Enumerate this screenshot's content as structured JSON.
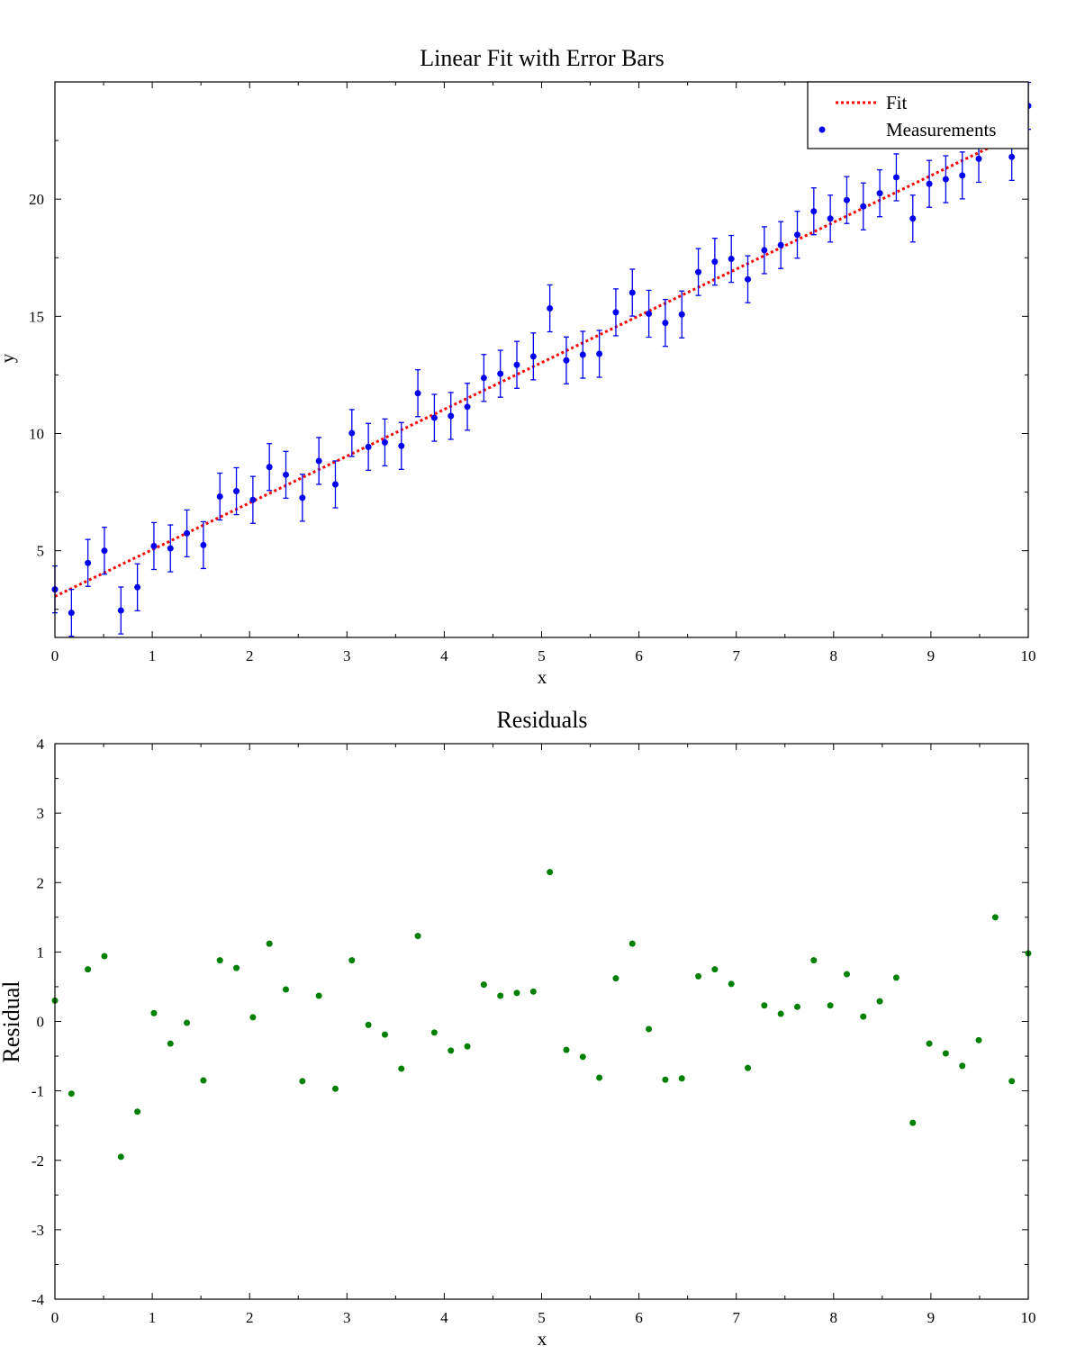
{
  "chart_data": [
    {
      "type": "scatter",
      "title": "Linear Fit with Error Bars",
      "xlabel": "x",
      "ylabel": "y",
      "xlim": [
        0,
        10
      ],
      "ylim": [
        1.3,
        25
      ],
      "xticks": [
        "0",
        "1",
        "2",
        "3",
        "4",
        "5",
        "6",
        "7",
        "8",
        "9",
        "10"
      ],
      "yticks": [
        "5",
        "10",
        "15",
        "20"
      ],
      "grid": false,
      "legend": {
        "placement": "top-right",
        "entries": [
          "Fit",
          "Measurements"
        ]
      },
      "fit": {
        "name": "Fit",
        "intercept": 3.05,
        "slope": 1.995,
        "color": "#ff0000",
        "style": "dotted"
      },
      "series": [
        {
          "name": "Measurements",
          "color": "#0000ee",
          "n_points": 60,
          "x_start": 0,
          "x_end": 10,
          "y": [
            3.35,
            2.35,
            4.48,
            5.0,
            2.45,
            3.44,
            5.2,
            5.1,
            5.74,
            5.24,
            7.31,
            7.54,
            7.17,
            8.57,
            8.24,
            7.26,
            8.83,
            7.83,
            10.02,
            9.43,
            9.62,
            9.47,
            11.72,
            10.67,
            10.75,
            11.14,
            12.37,
            12.55,
            12.93,
            13.29,
            15.34,
            13.12,
            13.36,
            13.4,
            15.17,
            16.01,
            15.11,
            14.72,
            15.08,
            16.89,
            17.33,
            17.45,
            16.58,
            17.82,
            18.04,
            18.48,
            19.48,
            19.17,
            19.96,
            19.69,
            20.25,
            20.93,
            19.17,
            20.65,
            20.85,
            21.01,
            21.72,
            23.82,
            21.8,
            23.98
          ],
          "error": 1.0
        }
      ]
    },
    {
      "type": "scatter",
      "title": "Residuals",
      "xlabel": "x",
      "ylabel": "Residual",
      "xlim": [
        0,
        10
      ],
      "ylim": [
        -4,
        4
      ],
      "xticks": [
        "0",
        "1",
        "2",
        "3",
        "4",
        "5",
        "6",
        "7",
        "8",
        "9",
        "10"
      ],
      "yticks": [
        "-4",
        "-3",
        "-2",
        "-1",
        "0",
        "1",
        "2",
        "3",
        "4"
      ],
      "grid": false,
      "series": [
        {
          "name": "Residual",
          "color": "#008000",
          "n_points": 60,
          "x_start": 0,
          "x_end": 10,
          "y": [
            0.3,
            -1.04,
            0.75,
            0.94,
            -1.95,
            -1.3,
            0.12,
            -0.32,
            -0.02,
            -0.85,
            0.88,
            0.77,
            0.06,
            1.12,
            0.46,
            -0.86,
            0.37,
            -0.97,
            0.88,
            -0.05,
            -0.19,
            -0.68,
            1.23,
            -0.16,
            -0.42,
            -0.36,
            0.53,
            0.37,
            0.41,
            0.43,
            2.15,
            -0.41,
            -0.51,
            -0.81,
            0.62,
            1.12,
            -0.11,
            -0.84,
            -0.82,
            0.65,
            0.75,
            0.54,
            -0.67,
            0.23,
            0.11,
            0.21,
            0.88,
            0.23,
            0.68,
            0.07,
            0.29,
            0.63,
            -1.46,
            -0.32,
            -0.46,
            -0.64,
            -0.27,
            1.5,
            -0.86,
            0.98
          ]
        }
      ]
    }
  ]
}
